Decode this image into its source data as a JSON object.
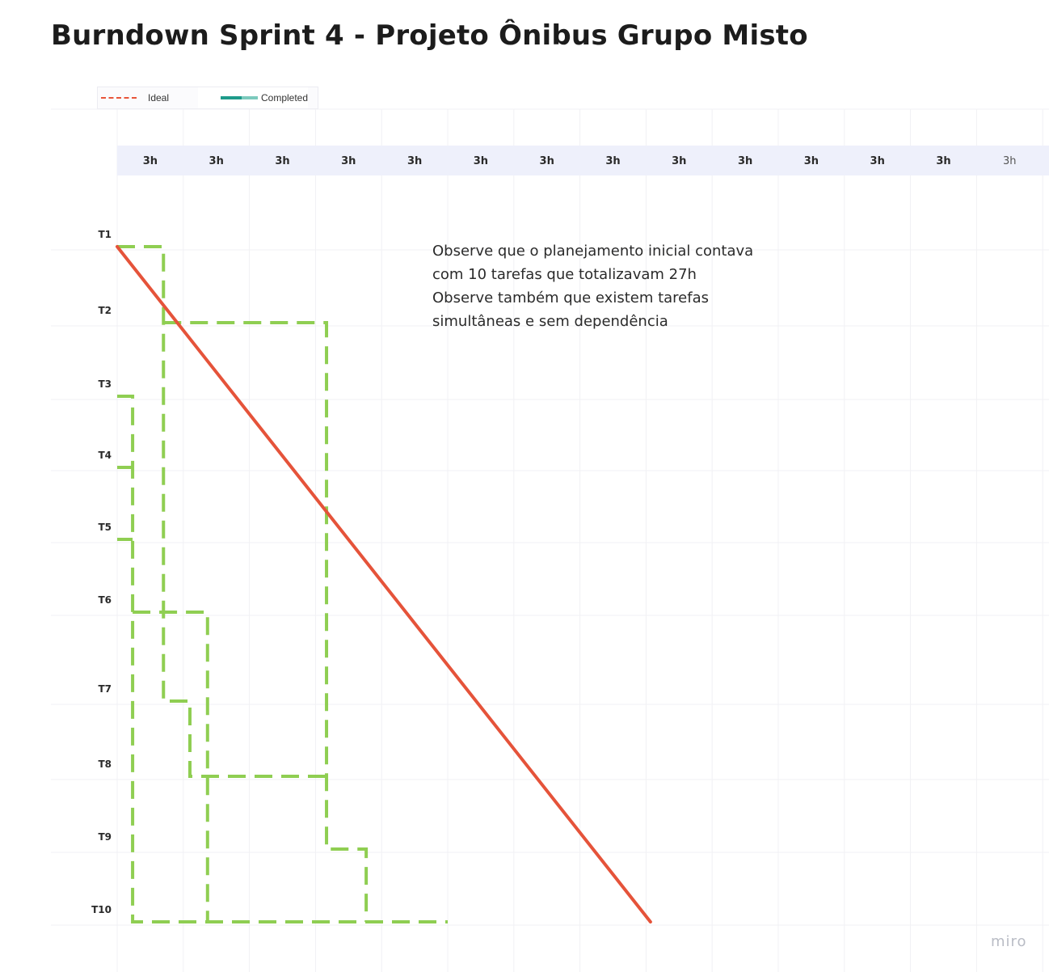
{
  "title": "Burndown Sprint 4 - Projeto Ônibus Grupo Misto",
  "legend": {
    "ideal": "Ideal",
    "completed": "Completed"
  },
  "colors": {
    "ideal": "#e5533a",
    "completed": "#8fce52",
    "header_band": "#eef0fb",
    "grid": "#f1f1f4"
  },
  "note": "Observe que o planejamento inicial contava\ncom 10 tarefas que totalizavam 27h\nObserve também que existem tarefas\nsimultâneas e sem dependência",
  "watermark": "miro",
  "chart_data": {
    "type": "line",
    "x_unit": "h",
    "x_ticks": [
      "3h",
      "3h",
      "3h",
      "3h",
      "3h",
      "3h",
      "3h",
      "3h",
      "3h",
      "3h",
      "3h",
      "3h",
      "3h",
      "3h"
    ],
    "y_categories": [
      "T1",
      "T2",
      "T3",
      "T4",
      "T5",
      "T6",
      "T7",
      "T8",
      "T9",
      "T10"
    ],
    "series": [
      {
        "name": "Ideal",
        "style": "solid",
        "points": [
          [
            0,
            "T1"
          ],
          [
            24.2,
            "T10"
          ]
        ]
      },
      {
        "name": "Completed",
        "style": "dashed",
        "segments": [
          [
            [
              0,
              "T1"
            ],
            [
              2.1,
              "T1"
            ],
            [
              2.1,
              "T7"
            ],
            [
              3.3,
              "T7"
            ],
            [
              3.3,
              "T8"
            ],
            [
              9.5,
              "T8"
            ]
          ],
          [
            [
              2.1,
              "T2"
            ],
            [
              9.5,
              "T2"
            ],
            [
              9.5,
              "T9"
            ],
            [
              11.3,
              "T9"
            ],
            [
              11.3,
              "T10"
            ]
          ],
          [
            [
              0,
              "T3"
            ],
            [
              0.7,
              "T3"
            ],
            [
              0.7,
              "T10"
            ],
            [
              15,
              "T10"
            ]
          ],
          [
            [
              0,
              "T4"
            ],
            [
              0.7,
              "T4"
            ]
          ],
          [
            [
              0,
              "T5"
            ],
            [
              0.7,
              "T5"
            ]
          ],
          [
            [
              0.7,
              "T6"
            ],
            [
              4.1,
              "T6"
            ],
            [
              4.1,
              "T10"
            ]
          ]
        ]
      }
    ]
  }
}
